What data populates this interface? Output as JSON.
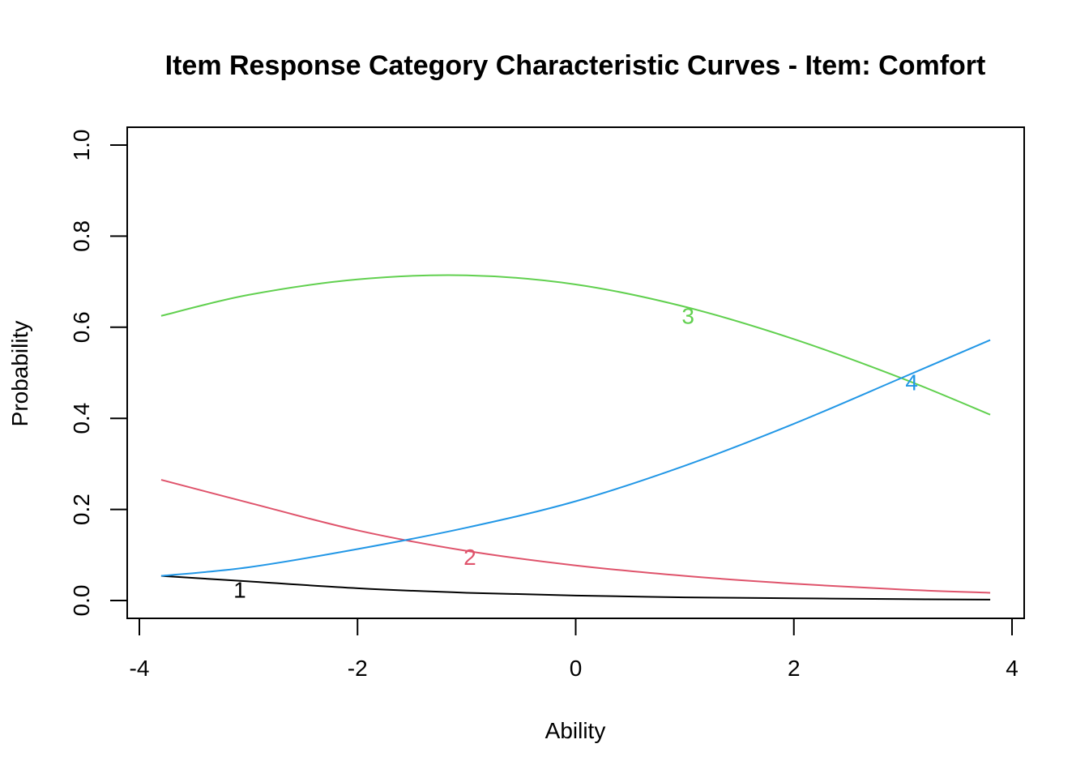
{
  "chart_data": {
    "type": "line",
    "title": "Item Response Category Characteristic Curves - Item: Comfort",
    "xlabel": "Ability",
    "ylabel": "Probability",
    "xlim": [
      -4,
      4
    ],
    "ylim": [
      0,
      1
    ],
    "x_ticks": [
      "-4",
      "-2",
      "0",
      "2",
      "4"
    ],
    "y_ticks": [
      "0.0",
      "0.2",
      "0.4",
      "0.6",
      "0.8",
      "1.0"
    ],
    "grid": false,
    "legend": "none",
    "x": [
      -3.8,
      -3.0,
      -2.0,
      -1.0,
      0.0,
      1.0,
      2.0,
      3.0,
      3.8
    ],
    "series": [
      {
        "label": "1",
        "color": "#000000",
        "values": [
          0.054,
          0.042,
          0.027,
          0.017,
          0.011,
          0.007,
          0.005,
          0.003,
          0.002
        ],
        "label_pos": [
          -3.08,
          0.006
        ]
      },
      {
        "label": "2",
        "color": "#DF536B",
        "values": [
          0.265,
          0.215,
          0.154,
          0.109,
          0.077,
          0.054,
          0.037,
          0.024,
          0.017
        ],
        "label_pos": [
          -0.97,
          0.078
        ]
      },
      {
        "label": "3",
        "color": "#61D04F",
        "values": [
          0.625,
          0.671,
          0.705,
          0.714,
          0.694,
          0.645,
          0.574,
          0.487,
          0.408
        ],
        "label_pos": [
          1.03,
          0.608
        ]
      },
      {
        "label": "4",
        "color": "#2297E6",
        "values": [
          0.054,
          0.073,
          0.113,
          0.16,
          0.218,
          0.296,
          0.388,
          0.49,
          0.572
        ],
        "label_pos": [
          3.08,
          0.462
        ]
      }
    ]
  }
}
